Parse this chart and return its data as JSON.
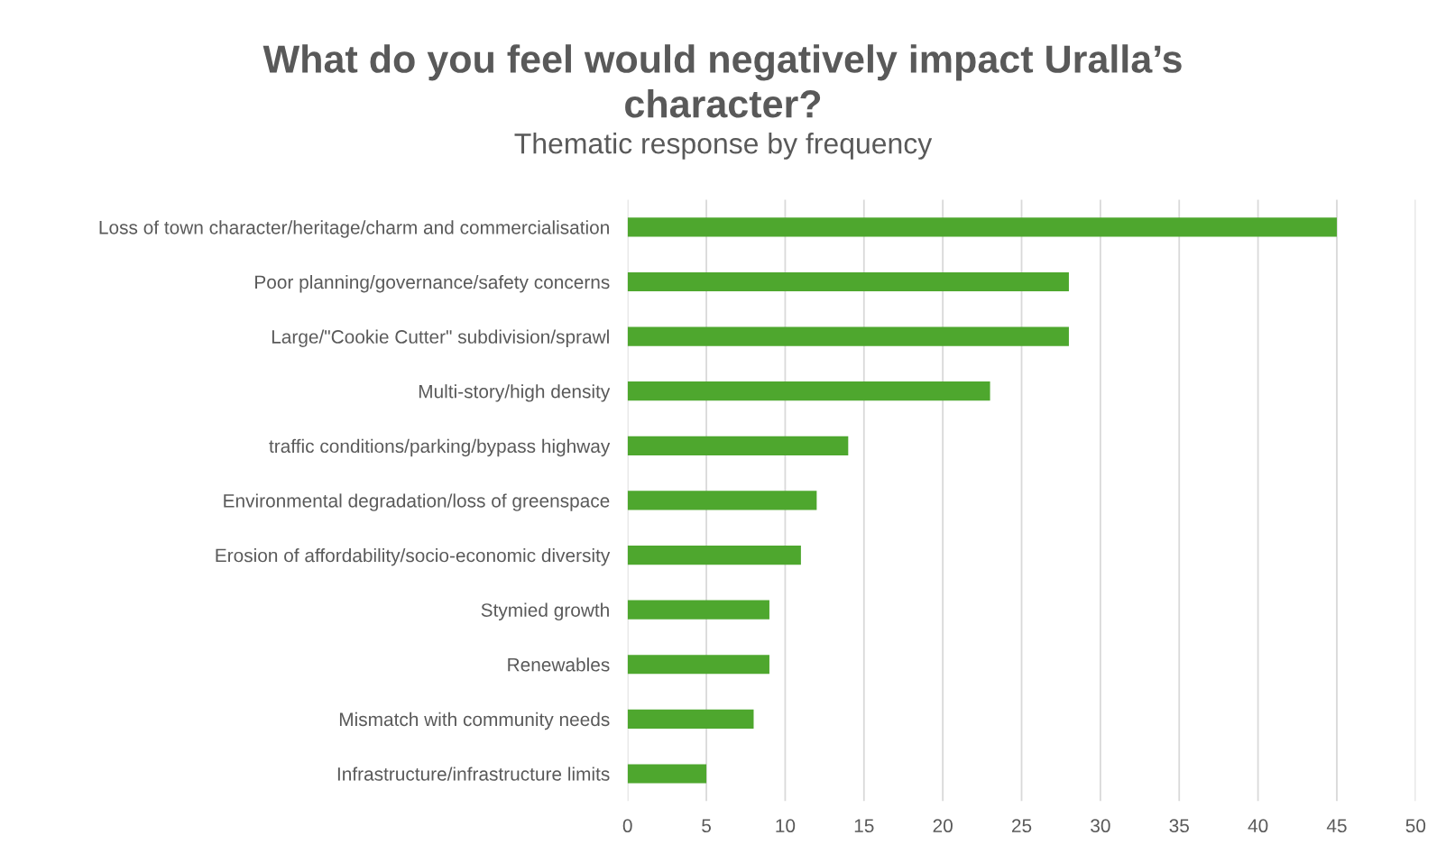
{
  "chart_data": {
    "type": "bar",
    "orientation": "horizontal",
    "title": "What do you feel would negatively impact Uralla’s\ncharacter?",
    "subtitle": "Thematic response by frequency",
    "categories": [
      "Loss of town character/heritage/charm and commercialisation",
      "Poor planning/governance/safety concerns",
      "Large/\"Cookie Cutter\" subdivision/sprawl",
      "Multi-story/high density",
      "traffic conditions/parking/bypass highway",
      "Environmental degradation/loss of greenspace",
      "Erosion of affordability/socio-economic diversity",
      "Stymied growth",
      "Renewables",
      "Mismatch with community needs",
      "Infrastructure/infrastructure limits"
    ],
    "values": [
      45,
      28,
      28,
      23,
      14,
      12,
      11,
      9,
      9,
      8,
      5
    ],
    "color": "#4ea72e",
    "xlim": [
      0,
      50
    ],
    "xticks": [
      0,
      5,
      10,
      15,
      20,
      25,
      30,
      35,
      40,
      45,
      50
    ],
    "grid": "x",
    "legend": false
  }
}
